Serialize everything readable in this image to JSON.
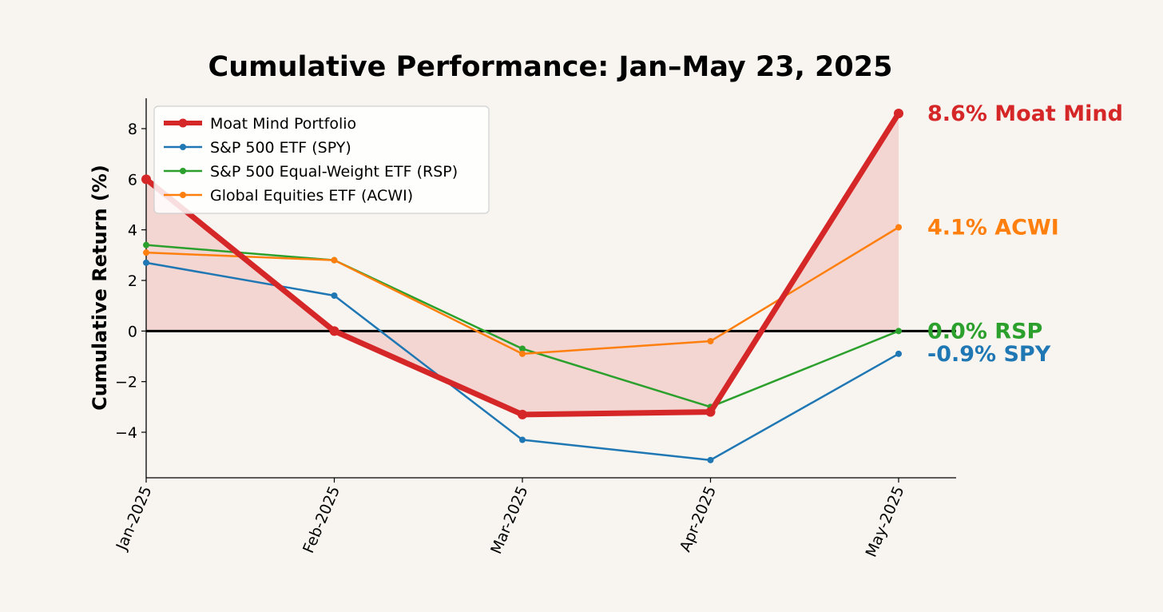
{
  "chart_data": {
    "type": "line",
    "title": "Cumulative Performance: Jan–May 23, 2025",
    "xlabel": "",
    "ylabel": "Cumulative Return (%)",
    "categories": [
      "Jan-2025",
      "Feb-2025",
      "Mar-2025",
      "Apr-2025",
      "May-2025"
    ],
    "ylim": [
      -5.8,
      9.2
    ],
    "yticks": [
      -4,
      -2,
      0,
      2,
      4,
      6,
      8
    ],
    "ytick_labels": [
      "−4",
      "−2",
      "0",
      "2",
      "4",
      "6",
      "8"
    ],
    "grid": false,
    "legend_position": "top-left",
    "zero_line": true,
    "fill_primary_to_zero": true,
    "series": [
      {
        "name": "Moat Mind Portfolio",
        "key": "moat",
        "color": "#d62728",
        "values": [
          6.0,
          0.0,
          -3.3,
          -3.2,
          8.6
        ],
        "end_label": "8.6% Moat Mind",
        "primary": true
      },
      {
        "name": "S&P 500 ETF (SPY)",
        "key": "spy",
        "color": "#1f77b4",
        "values": [
          2.7,
          1.4,
          -4.3,
          -5.1,
          -0.9
        ],
        "end_label": "-0.9% SPY"
      },
      {
        "name": "S&P 500 Equal-Weight ETF (RSP)",
        "key": "rsp",
        "color": "#2ca02c",
        "values": [
          3.4,
          2.8,
          -0.7,
          -3.0,
          0.0
        ],
        "end_label": "0.0% RSP"
      },
      {
        "name": "Global Equities ETF (ACWI)",
        "key": "acwi",
        "color": "#ff7f0e",
        "values": [
          3.1,
          2.8,
          -0.9,
          -0.4,
          4.1
        ],
        "end_label": "4.1% ACWI"
      }
    ]
  }
}
